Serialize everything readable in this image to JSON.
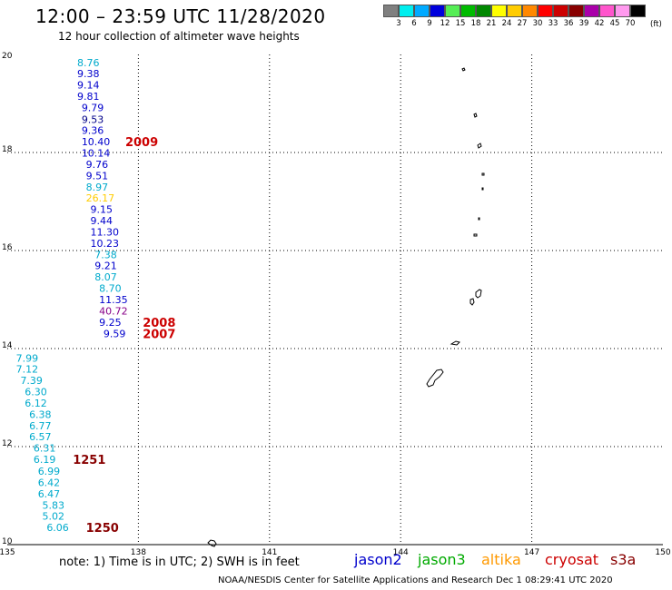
{
  "header": {
    "title": "12:00 – 23:59 UTC 11/28/2020",
    "subtitle": "12 hour collection of altimeter wave heights"
  },
  "legend": {
    "colors": [
      "#808080",
      "#00eeee",
      "#00aaff",
      "#0000dd",
      "#55ee55",
      "#00bb00",
      "#008800",
      "#ffff00",
      "#ffcc00",
      "#ff8800",
      "#ff0000",
      "#cc0000",
      "#880000",
      "#aa00aa",
      "#ff55cc",
      "#ff99ee",
      "#000000"
    ],
    "labels": [
      "3",
      "6",
      "9",
      "12",
      "15",
      "18",
      "21",
      "24",
      "27",
      "30",
      "33",
      "36",
      "39",
      "42",
      "45",
      "70"
    ],
    "unit": "(ft)"
  },
  "map": {
    "lon_range": [
      135,
      150
    ],
    "lat_range": [
      10,
      20
    ],
    "lon_ticks": [
      "135",
      "138",
      "141",
      "144",
      "147",
      "150"
    ],
    "lat_ticks": [
      "20",
      "18",
      "16",
      "14",
      "12",
      "10"
    ],
    "gridlines": "dotted",
    "track_colors": {
      "jason2": "#0000cc",
      "jason3": "#00aaaa",
      "altika": "#aaaa00",
      "cryosat": "#880088",
      "ship": "#cc0000",
      "dark": "#880000"
    },
    "observations": [
      {
        "lon": 136.6,
        "lat": 19.83,
        "value": "8.76",
        "color": "#00aacc"
      },
      {
        "lon": 136.6,
        "lat": 19.61,
        "value": "9.38",
        "color": "#0000cc"
      },
      {
        "lon": 136.6,
        "lat": 19.38,
        "value": "9.14",
        "color": "#0000cc"
      },
      {
        "lon": 136.6,
        "lat": 19.15,
        "value": "9.81",
        "color": "#0000cc"
      },
      {
        "lon": 136.7,
        "lat": 18.92,
        "value": "9.79",
        "color": "#0000cc"
      },
      {
        "lon": 136.7,
        "lat": 18.68,
        "value": "9.53",
        "color": "#000088"
      },
      {
        "lon": 136.7,
        "lat": 18.45,
        "value": "9.36",
        "color": "#0000cc"
      },
      {
        "lon": 136.7,
        "lat": 18.22,
        "value": "10.40",
        "color": "#0000cc"
      },
      {
        "lon": 136.7,
        "lat": 17.99,
        "value": "10.14",
        "color": "#0000cc"
      },
      {
        "lon": 136.8,
        "lat": 17.76,
        "value": "9.76",
        "color": "#0000cc"
      },
      {
        "lon": 136.8,
        "lat": 17.53,
        "value": "9.51",
        "color": "#0000cc"
      },
      {
        "lon": 136.8,
        "lat": 17.3,
        "value": "8.97",
        "color": "#00aacc"
      },
      {
        "lon": 136.8,
        "lat": 17.07,
        "value": "26.17",
        "color": "#ffcc00"
      },
      {
        "lon": 136.9,
        "lat": 16.84,
        "value": "9.15",
        "color": "#0000cc"
      },
      {
        "lon": 136.9,
        "lat": 16.61,
        "value": "9.44",
        "color": "#0000cc"
      },
      {
        "lon": 136.9,
        "lat": 16.38,
        "value": "11.30",
        "color": "#0000cc"
      },
      {
        "lon": 136.9,
        "lat": 16.15,
        "value": "10.23",
        "color": "#0000cc"
      },
      {
        "lon": 137.0,
        "lat": 15.92,
        "value": "7.38",
        "color": "#00aacc"
      },
      {
        "lon": 137.0,
        "lat": 15.69,
        "value": "9.21",
        "color": "#0000cc"
      },
      {
        "lon": 137.0,
        "lat": 15.46,
        "value": "8.07",
        "color": "#00aacc"
      },
      {
        "lon": 137.1,
        "lat": 15.23,
        "value": "8.70",
        "color": "#00aacc"
      },
      {
        "lon": 137.1,
        "lat": 15.0,
        "value": "11.35",
        "color": "#0000cc"
      },
      {
        "lon": 137.1,
        "lat": 14.77,
        "value": "40.72",
        "color": "#880088"
      },
      {
        "lon": 137.1,
        "lat": 14.54,
        "value": "9.25",
        "color": "#0000cc"
      },
      {
        "lon": 137.2,
        "lat": 14.31,
        "value": "9.59",
        "color": "#0000cc"
      },
      {
        "lon": 135.2,
        "lat": 13.81,
        "value": "7.99",
        "color": "#00aacc"
      },
      {
        "lon": 135.2,
        "lat": 13.58,
        "value": "7.12",
        "color": "#00aacc"
      },
      {
        "lon": 135.3,
        "lat": 13.35,
        "value": "7.39",
        "color": "#00aacc"
      },
      {
        "lon": 135.4,
        "lat": 13.12,
        "value": "6.30",
        "color": "#00aacc"
      },
      {
        "lon": 135.4,
        "lat": 12.89,
        "value": "6.12",
        "color": "#00aacc"
      },
      {
        "lon": 135.5,
        "lat": 12.66,
        "value": "6.38",
        "color": "#00aacc"
      },
      {
        "lon": 135.5,
        "lat": 12.43,
        "value": "6.77",
        "color": "#00aacc"
      },
      {
        "lon": 135.5,
        "lat": 12.2,
        "value": "6.57",
        "color": "#00aacc"
      },
      {
        "lon": 135.6,
        "lat": 11.97,
        "value": "6.31",
        "color": "#00aacc"
      },
      {
        "lon": 135.6,
        "lat": 11.74,
        "value": "6.19",
        "color": "#00aacc"
      },
      {
        "lon": 135.7,
        "lat": 11.5,
        "value": "6.99",
        "color": "#00aacc"
      },
      {
        "lon": 135.7,
        "lat": 11.27,
        "value": "6.42",
        "color": "#00aacc"
      },
      {
        "lon": 135.7,
        "lat": 11.04,
        "value": "6.47",
        "color": "#00aacc"
      },
      {
        "lon": 135.8,
        "lat": 10.81,
        "value": "5.83",
        "color": "#00aacc"
      },
      {
        "lon": 135.8,
        "lat": 10.58,
        "value": "5.02",
        "color": "#00aacc"
      },
      {
        "lon": 135.9,
        "lat": 10.35,
        "value": "6.06",
        "color": "#00aacc"
      }
    ],
    "time_labels": [
      {
        "lon": 137.7,
        "lat": 18.22,
        "text": "2009",
        "color": "#cc0000"
      },
      {
        "lon": 138.1,
        "lat": 14.54,
        "text": "2008",
        "color": "#cc0000"
      },
      {
        "lon": 138.1,
        "lat": 14.31,
        "text": "2007",
        "color": "#cc0000"
      },
      {
        "lon": 136.5,
        "lat": 11.74,
        "text": "1251",
        "color": "#880000"
      },
      {
        "lon": 136.8,
        "lat": 10.35,
        "text": "1250",
        "color": "#880000"
      }
    ]
  },
  "footer": {
    "note": "note: 1) Time is in UTC; 2) SWH is in feet",
    "satellites": [
      {
        "name": "jason2",
        "color": "#0000cc"
      },
      {
        "name": "jason3",
        "color": "#00aa00"
      },
      {
        "name": "altika",
        "color": "#ff9900"
      },
      {
        "name": "cryosat",
        "color": "#cc0000"
      },
      {
        "name": "s3a",
        "color": "#880000"
      }
    ],
    "credit": "NOAA/NESDIS Center for Satellite Applications and Research    Dec  1 08:29:41 UTC 2020"
  }
}
